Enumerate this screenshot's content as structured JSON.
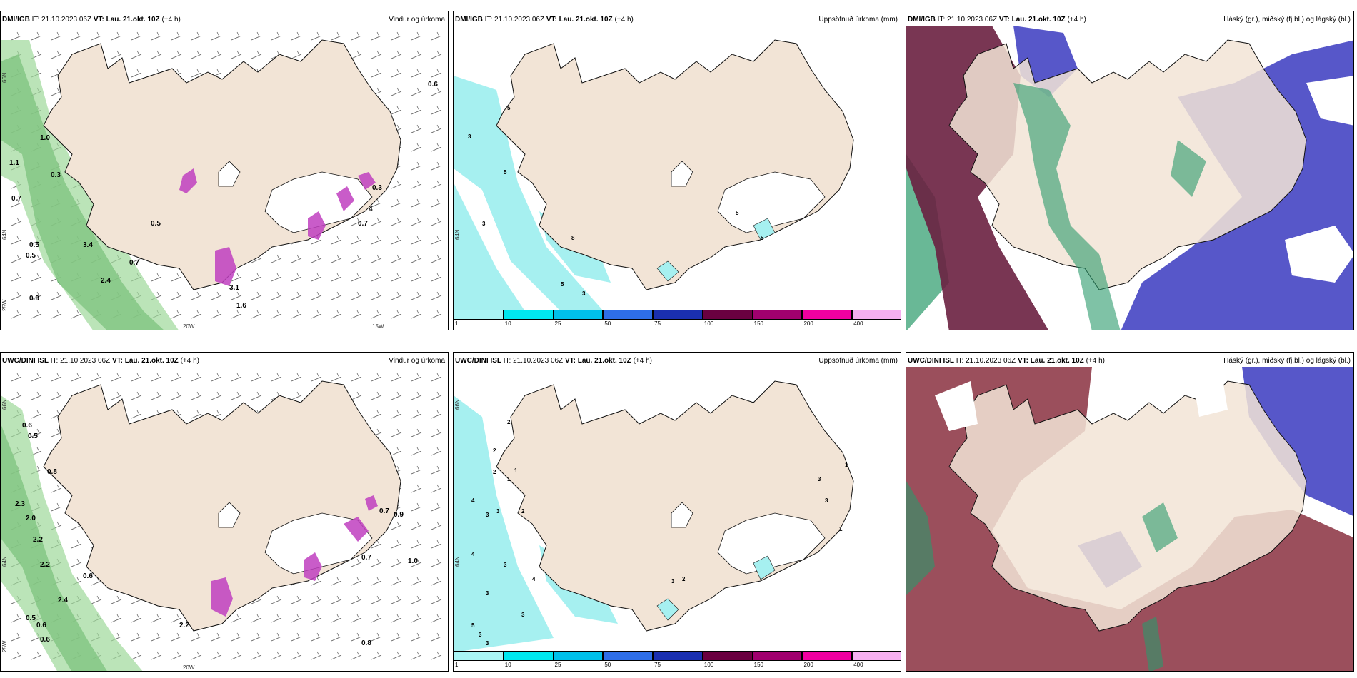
{
  "panels": {
    "p1": {
      "model": "DMI/IGB",
      "it_label": "IT:",
      "init": "21.10.2023 06Z",
      "vt_label": "VT:",
      "valid": "Lau. 21.okt. 10Z",
      "lead": "(+4 h)",
      "title": "Vindur og úrkoma"
    },
    "p2": {
      "model": "DMI/IGB",
      "it_label": "IT:",
      "init": "21.10.2023 06Z",
      "vt_label": "VT:",
      "valid": "Lau. 21.okt. 10Z",
      "lead": "(+4 h)",
      "title": "Uppsöfnuð úrkoma (mm)"
    },
    "p3": {
      "model": "DMI/IGB",
      "it_label": "IT:",
      "init": "21.10.2023 06Z",
      "vt_label": "VT:",
      "valid": "Lau. 21.okt. 10Z",
      "lead": "(+4 h)",
      "title": "Háský (gr.), miðský (fj.bl.) og lágský (bl.)"
    },
    "p4": {
      "model": "UWC/DINI ISL",
      "it_label": "IT:",
      "init": "21.10.2023 06Z",
      "vt_label": "VT:",
      "valid": "Lau. 21.okt. 10Z",
      "lead": "(+4 h)",
      "title": "Vindur og úrkoma"
    },
    "p5": {
      "model": "UWC/DINI ISL",
      "it_label": "IT:",
      "init": "21.10.2023 06Z",
      "vt_label": "VT:",
      "valid": "Lau. 21.okt. 10Z",
      "lead": "(+4 h)",
      "title": "Uppsöfnuð úrkoma (mm)"
    },
    "p6": {
      "model": "UWC/DINI ISL",
      "it_label": "IT:",
      "init": "21.10.2023 06Z",
      "vt_label": "VT:",
      "valid": "Lau. 21.okt. 10Z",
      "lead": "(+4 h)",
      "title": "Háský (gr.), miðský (fj.bl.) og lágský (bl.)"
    }
  },
  "axis_ticks": {
    "n66": "66N",
    "n64": "64N",
    "w25": "25W",
    "w20": "20W",
    "w15": "15W"
  },
  "colorbar": {
    "ticks": [
      "1",
      "10",
      "25",
      "50",
      "75",
      "100",
      "150",
      "200",
      "400"
    ],
    "colors": [
      "#aaf5f5",
      "#00e8f0",
      "#00c0ea",
      "#2e6ee8",
      "#1a2fb0",
      "#6a0040",
      "#a0006e",
      "#f000a0",
      "#f6b0f0"
    ]
  },
  "colors": {
    "land": "#f2e4d6",
    "precip_green": "#2f8f3a",
    "precip_magenta": "#c040c0",
    "accum_cyan": "#a6f0f0",
    "high_cloud": "#6a2040",
    "mid_cloud": "#3a3ac0",
    "low_cloud": "#2a9a6a"
  },
  "wind_labels": {
    "p1": [
      "0.6",
      "1.0",
      "1.1",
      "0.3",
      "0.7",
      "0.5",
      "0.5",
      "0.5",
      "3.4",
      "0.7",
      "2.4",
      "0.9",
      "4",
      "0.7",
      "3.1",
      "1.6",
      "0.3"
    ],
    "p4": [
      "0.6",
      "0.5",
      "0.8",
      "2.3",
      "2.0",
      "2.2",
      "2.2",
      "0.6",
      "2.4",
      "0.5",
      "0.6",
      "0.6",
      "2.2",
      "0.8",
      "0.7",
      "0.9",
      "0.7",
      "1.0"
    ]
  },
  "accum_labels": {
    "p2": [
      "5",
      "3",
      "5",
      "3",
      "8",
      "5",
      "5",
      "3",
      "5"
    ],
    "p5": [
      "2",
      "2",
      "2",
      "1",
      "1",
      "4",
      "3",
      "3",
      "2",
      "4",
      "3",
      "3",
      "4",
      "3",
      "5",
      "3",
      "3",
      "3",
      "2",
      "3",
      "3",
      "1",
      "1"
    ]
  }
}
